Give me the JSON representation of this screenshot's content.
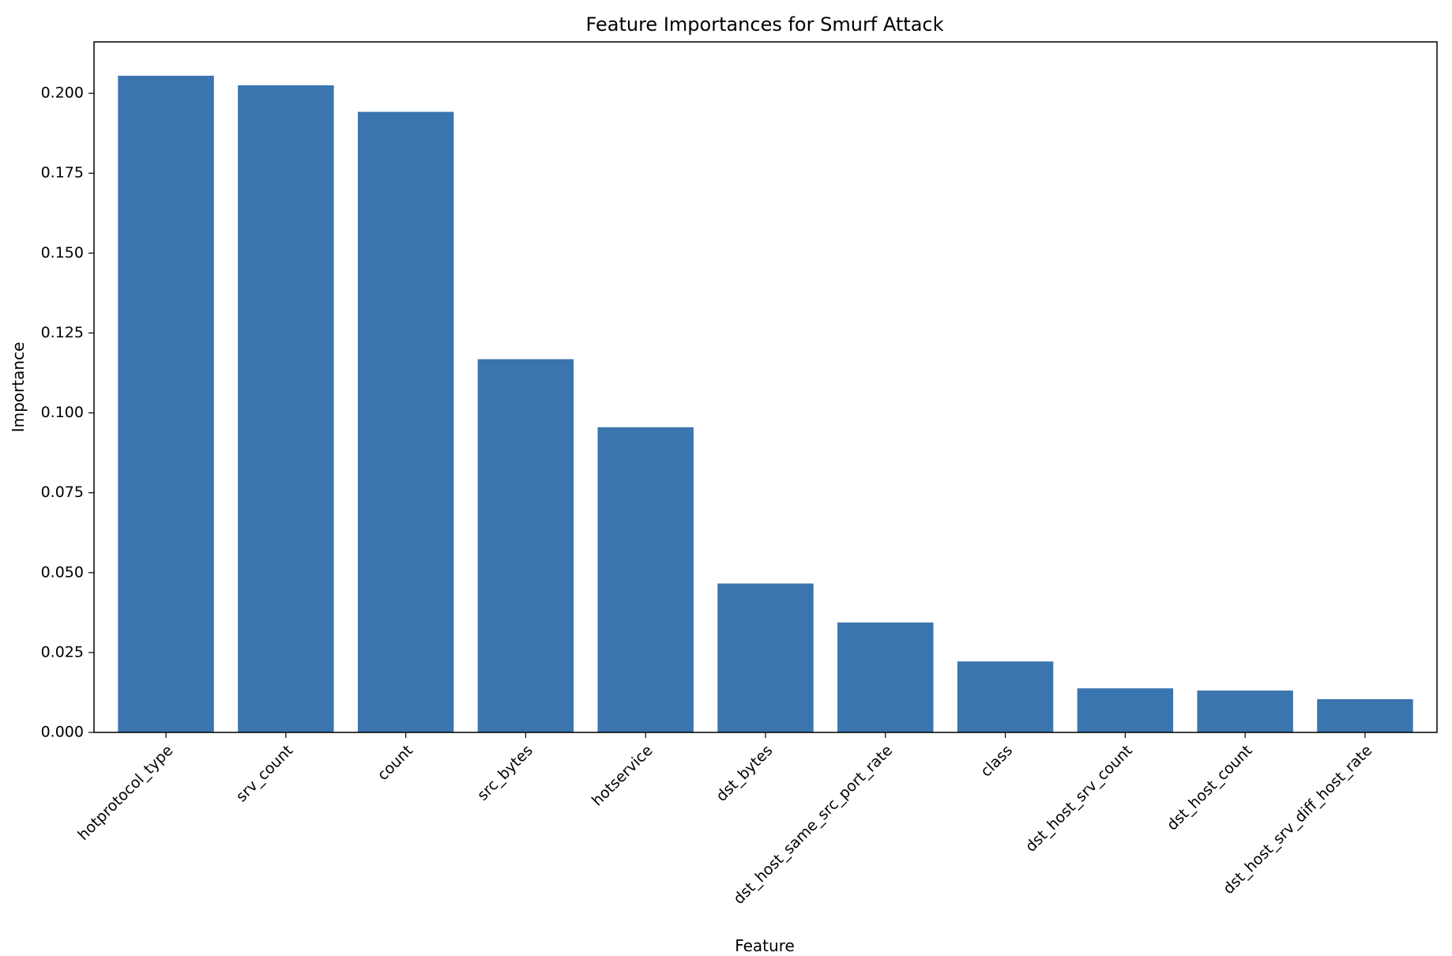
{
  "chart_data": {
    "type": "bar",
    "title": "Feature Importances for Smurf Attack",
    "xlabel": "Feature",
    "ylabel": "Importance",
    "categories": [
      "hotprotocol_type",
      "srv_count",
      "count",
      "src_bytes",
      "hotservice",
      "dst_bytes",
      "dst_host_same_src_port_rate",
      "class",
      "dst_host_srv_count",
      "dst_host_count",
      "dst_host_srv_diff_host_rate"
    ],
    "values": [
      0.2055,
      0.2025,
      0.1942,
      0.1168,
      0.0955,
      0.0466,
      0.0344,
      0.0222,
      0.0138,
      0.0131,
      0.0104
    ],
    "ylim": [
      0,
      0.2161
    ],
    "yticks": [
      "0.000",
      "0.025",
      "0.050",
      "0.075",
      "0.100",
      "0.125",
      "0.150",
      "0.175",
      "0.200"
    ],
    "bar_color": "#3b75af",
    "grid": false,
    "legend": "none"
  }
}
